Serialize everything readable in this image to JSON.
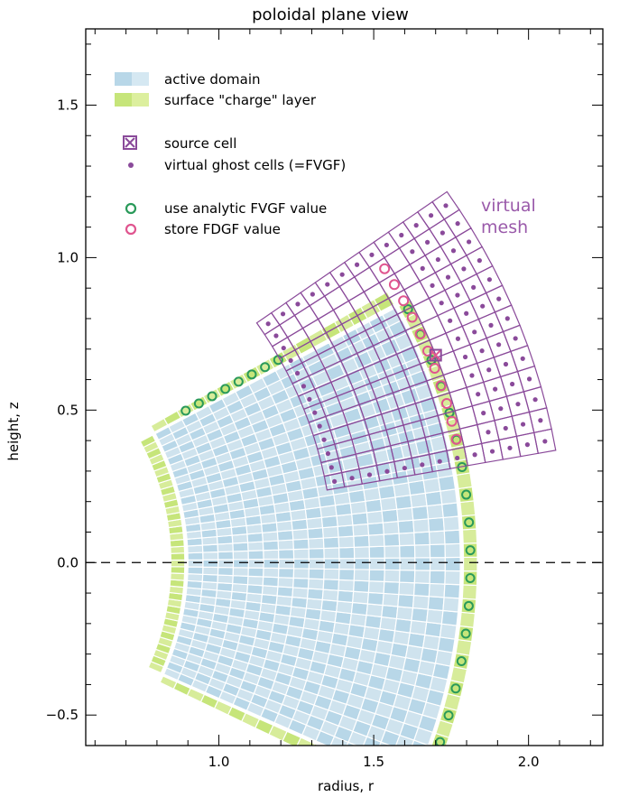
{
  "chart_data": {
    "type": "diagram",
    "title": "poloidal plane view",
    "xlabel": "radius, r",
    "ylabel": "height, z",
    "xlim": [
      0.57,
      2.24
    ],
    "ylim": [
      -0.6,
      1.75
    ],
    "xticks": [
      1.0,
      1.5,
      2.0
    ],
    "xtick_labels": [
      "1.0",
      "1.5",
      "2.0"
    ],
    "yticks": [
      -0.5,
      0.0,
      0.5,
      1.0,
      1.5
    ],
    "ytick_labels": [
      "−0.5",
      "0.0",
      "0.5",
      "1.0",
      "1.5"
    ],
    "zero_line": {
      "y": 0.0,
      "style": "dashed"
    },
    "legend": {
      "position": "top-left",
      "items": [
        {
          "label": "active domain",
          "marker": "swatch-blue"
        },
        {
          "label": "surface \"charge\" layer",
          "marker": "swatch-green"
        },
        {
          "label": "source cell",
          "marker": "boxed-x"
        },
        {
          "label": "virtual ghost cells (=FVGF)",
          "marker": "dot"
        },
        {
          "label": "use analytic FVGF value",
          "marker": "green-circle"
        },
        {
          "label": "store FDGF value",
          "marker": "pink-circle"
        }
      ]
    },
    "virtual_mesh_label": [
      "virtual",
      "mesh"
    ],
    "grid": {
      "center_r": 0.0,
      "center_z": 0.0,
      "active_radii_inner": 0.9,
      "active_radii_outer": 1.78,
      "active_theta_min_deg": -24,
      "active_theta_max_deg": 28,
      "surface_layer_thickness": 0.045,
      "virtual_mesh_r_range": [
        1.37,
        2.12
      ],
      "virtual_mesh_theta_range_deg": [
        10,
        35
      ]
    },
    "source_cell": {
      "r": 1.7,
      "z": 0.68
    },
    "colors": {
      "active_domain": "#cfe3ee",
      "active_domain_alt": "#b8d7e8",
      "surface_layer": "#d7ec9a",
      "surface_layer_alt": "#c6e57a",
      "virtual_mesh": "#8a4a9a",
      "ghost_dot": "#8a4a9a",
      "fvgf_circle": "#2a9a5a",
      "fdgf_circle": "#e0558f",
      "source_cell": "#8a4a9a",
      "virtual_mesh_text": "#9a5aaa"
    }
  }
}
